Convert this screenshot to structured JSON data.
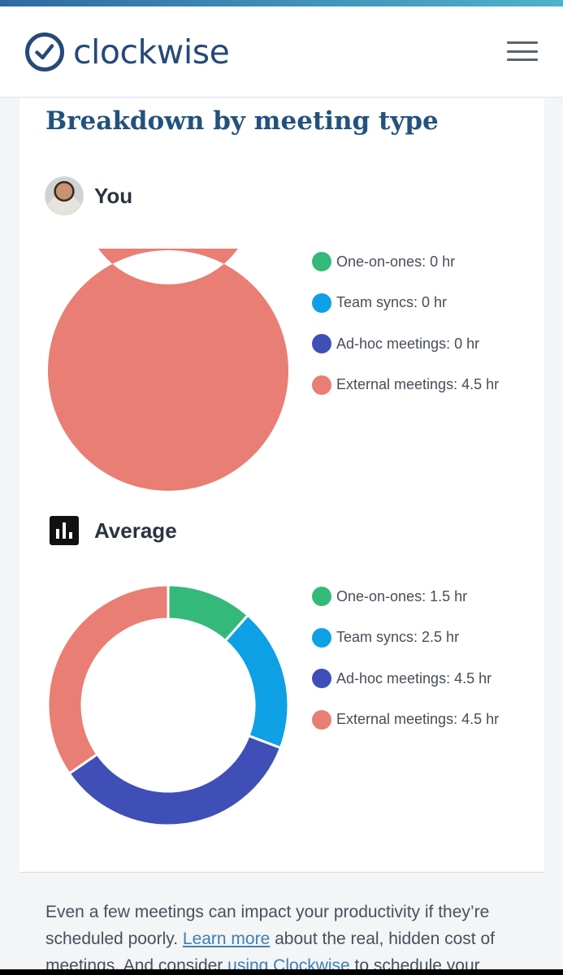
{
  "app": {
    "logo_text": "clockwise",
    "logo_icon": "clock-check-icon",
    "menu_icon": "hamburger-menu-icon"
  },
  "colors": {
    "brand": "#264a78",
    "title": "#22527e",
    "one_on_ones": "#35b97a",
    "team_syncs": "#0ea0e5",
    "adhoc": "#3f4fb7",
    "external": "#e97e74"
  },
  "breakdown": {
    "title": "Breakdown by meeting type",
    "you": {
      "label": "You",
      "legend": [
        {
          "text": "One-on-ones: 0 hr",
          "color": "#35b97a"
        },
        {
          "text": "Team syncs: 0 hr",
          "color": "#0ea0e5"
        },
        {
          "text": "Ad-hoc meetings: 0 hr",
          "color": "#3f4fb7"
        },
        {
          "text": "External meetings: 4.5 hr",
          "color": "#e97e74"
        }
      ]
    },
    "average": {
      "label": "Average",
      "icon": "bar-chart-icon",
      "legend": [
        {
          "text": "One-on-ones: 1.5 hr",
          "color": "#35b97a"
        },
        {
          "text": "Team syncs: 2.5 hr",
          "color": "#0ea0e5"
        },
        {
          "text": "Ad-hoc meetings: 4.5 hr",
          "color": "#3f4fb7"
        },
        {
          "text": "External meetings: 4.5 hr",
          "color": "#e97e74"
        }
      ]
    }
  },
  "chart_data": [
    {
      "type": "pie",
      "categories": [
        "One-on-ones",
        "Team syncs",
        "Ad-hoc meetings",
        "External meetings"
      ],
      "values": [
        0,
        0,
        0,
        4.5
      ],
      "unit": "hr",
      "colors": [
        "#35b97a",
        "#0ea0e5",
        "#3f4fb7",
        "#e97e74"
      ]
    },
    {
      "type": "pie",
      "categories": [
        "One-on-ones",
        "Team syncs",
        "Ad-hoc meetings",
        "External meetings"
      ],
      "values": [
        1.5,
        2.5,
        4.5,
        4.5
      ],
      "unit": "hr",
      "colors": [
        "#35b97a",
        "#0ea0e5",
        "#3f4fb7",
        "#e97e74"
      ]
    }
  ],
  "footer": {
    "text_1": "Even a few meetings can impact your productivity if they’re scheduled poorly. ",
    "link_1": "Learn more",
    "text_2": " about the real, hidden cost of meetings. And consider ",
    "link_2": "using Clockwise",
    "text_3": " to schedule your"
  }
}
